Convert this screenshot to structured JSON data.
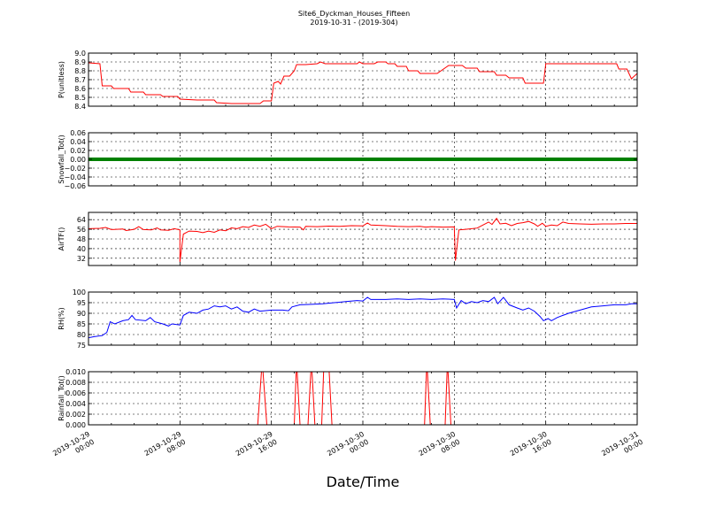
{
  "title_line1": "Site6_Dyckman_Houses_Fifteen",
  "title_line2": "2019-10-31 - (2019-304)",
  "xlabel": "Date/Time",
  "chart_data": {
    "type": "line",
    "x_range": [
      "2019-10-29 00:00",
      "2019-10-31 00:00"
    ],
    "x_ticks": [
      {
        "line1": "2019-10-29",
        "line2": "00:00",
        "hour": 0
      },
      {
        "line1": "2019-10-29",
        "line2": "08:00",
        "hour": 8
      },
      {
        "line1": "2019-10-29",
        "line2": "16:00",
        "hour": 16
      },
      {
        "line1": "2019-10-30",
        "line2": "00:00",
        "hour": 24
      },
      {
        "line1": "2019-10-30",
        "line2": "08:00",
        "hour": 32
      },
      {
        "line1": "2019-10-30",
        "line2": "16:00",
        "hour": 40
      },
      {
        "line1": "2019-10-31",
        "line2": "00:00",
        "hour": 48
      }
    ],
    "grid": true,
    "panels": [
      {
        "ylabel": "P(unitless)",
        "color": "#ff0000",
        "ylim": [
          8.4,
          9.0
        ],
        "yticks": [
          "8.4",
          "8.5",
          "8.6",
          "8.7",
          "8.8",
          "8.9",
          "9.0"
        ],
        "points": [
          [
            0,
            8.89
          ],
          [
            1,
            8.88
          ],
          [
            1.2,
            8.63
          ],
          [
            2,
            8.63
          ],
          [
            2.2,
            8.6
          ],
          [
            3.5,
            8.6
          ],
          [
            3.7,
            8.56
          ],
          [
            4.8,
            8.56
          ],
          [
            5,
            8.53
          ],
          [
            6.3,
            8.53
          ],
          [
            6.5,
            8.51
          ],
          [
            7.8,
            8.51
          ],
          [
            8,
            8.48
          ],
          [
            9.5,
            8.47
          ],
          [
            11,
            8.47
          ],
          [
            11.2,
            8.44
          ],
          [
            12.5,
            8.43
          ],
          [
            15,
            8.43
          ],
          [
            15.3,
            8.46
          ],
          [
            16,
            8.46
          ],
          [
            16.2,
            8.66
          ],
          [
            16.6,
            8.68
          ],
          [
            16.8,
            8.65
          ],
          [
            17.1,
            8.74
          ],
          [
            17.6,
            8.74
          ],
          [
            18,
            8.8
          ],
          [
            18.2,
            8.87
          ],
          [
            19,
            8.87
          ],
          [
            20,
            8.88
          ],
          [
            20.3,
            8.9
          ],
          [
            20.7,
            8.88
          ],
          [
            22,
            8.88
          ],
          [
            23.5,
            8.88
          ],
          [
            23.7,
            8.9
          ],
          [
            24,
            8.88
          ],
          [
            25,
            8.88
          ],
          [
            25.3,
            8.9
          ],
          [
            26,
            8.9
          ],
          [
            26.2,
            8.88
          ],
          [
            26.8,
            8.88
          ],
          [
            27,
            8.85
          ],
          [
            27.8,
            8.85
          ],
          [
            28,
            8.8
          ],
          [
            28.8,
            8.8
          ],
          [
            29,
            8.77
          ],
          [
            30.5,
            8.77
          ],
          [
            31.5,
            8.86
          ],
          [
            32.7,
            8.86
          ],
          [
            33,
            8.83
          ],
          [
            34,
            8.83
          ],
          [
            34.2,
            8.79
          ],
          [
            35.5,
            8.79
          ],
          [
            35.7,
            8.75
          ],
          [
            36.5,
            8.75
          ],
          [
            36.8,
            8.72
          ],
          [
            38,
            8.72
          ],
          [
            38.2,
            8.66
          ],
          [
            39.8,
            8.66
          ],
          [
            40,
            8.88
          ],
          [
            45,
            8.88
          ],
          [
            46.2,
            8.88
          ],
          [
            46.4,
            8.82
          ],
          [
            47.1,
            8.82
          ],
          [
            47.5,
            8.71
          ],
          [
            48,
            8.77
          ]
        ]
      },
      {
        "ylabel": "Snowfall_Tot()",
        "color": "#008000",
        "ylim": [
          -0.06,
          0.06
        ],
        "yticks": [
          "−0.06",
          "−0.04",
          "−0.02",
          "0.00",
          "0.02",
          "0.04",
          "0.06"
        ],
        "yvals": [
          -0.06,
          -0.04,
          -0.02,
          0.0,
          0.02,
          0.04,
          0.06
        ],
        "points": [
          [
            0,
            0
          ],
          [
            48,
            0
          ]
        ],
        "thick": true
      },
      {
        "ylabel": "AirTF()",
        "color": "#ff0000",
        "ylim": [
          26,
          70
        ],
        "yticks": [
          "32",
          "40",
          "48",
          "56",
          "64"
        ],
        "yvals": [
          32,
          40,
          48,
          56,
          64
        ],
        "points": [
          [
            0,
            56.5
          ],
          [
            1,
            56.8
          ],
          [
            1.5,
            57.5
          ],
          [
            2,
            55.8
          ],
          [
            3,
            56.2
          ],
          [
            3.3,
            55.0
          ],
          [
            4,
            56.0
          ],
          [
            4.4,
            58.2
          ],
          [
            4.8,
            55.8
          ],
          [
            5.5,
            55.5
          ],
          [
            6,
            57.2
          ],
          [
            6.3,
            55.5
          ],
          [
            7,
            55.2
          ],
          [
            7.5,
            56.5
          ],
          [
            8,
            55.5
          ],
          [
            8,
            29
          ],
          [
            8.3,
            52
          ],
          [
            8.8,
            54.5
          ],
          [
            9.5,
            54.2
          ],
          [
            10,
            53.2
          ],
          [
            10.5,
            54.5
          ],
          [
            11,
            53.5
          ],
          [
            11.5,
            55.5
          ],
          [
            12,
            54.8
          ],
          [
            12.5,
            57.2
          ],
          [
            13,
            56.5
          ],
          [
            13.5,
            58.2
          ],
          [
            14,
            57.5
          ],
          [
            14.5,
            59.5
          ],
          [
            15,
            58.5
          ],
          [
            15.5,
            60.2
          ],
          [
            16,
            56.5
          ],
          [
            16.5,
            58.5
          ],
          [
            17.5,
            58.0
          ],
          [
            18.5,
            57.8
          ],
          [
            18.8,
            55.5
          ],
          [
            19,
            58.5
          ],
          [
            20,
            58.2
          ],
          [
            21,
            58.6
          ],
          [
            22,
            58.4
          ],
          [
            23,
            59.0
          ],
          [
            24,
            58.8
          ],
          [
            24.4,
            61.2
          ],
          [
            24.7,
            59.5
          ],
          [
            26,
            59.0
          ],
          [
            27,
            58.5
          ],
          [
            28,
            58.2
          ],
          [
            29,
            58.5
          ],
          [
            29.5,
            57.8
          ],
          [
            30,
            58.2
          ],
          [
            31,
            57.8
          ],
          [
            32,
            58.0
          ],
          [
            32.1,
            30
          ],
          [
            32.4,
            55.5
          ],
          [
            33,
            56.0
          ],
          [
            34,
            57.0
          ],
          [
            34.5,
            59.5
          ],
          [
            35,
            62.0
          ],
          [
            35.3,
            60.0
          ],
          [
            35.7,
            65.0
          ],
          [
            36,
            60.5
          ],
          [
            36.5,
            61.0
          ],
          [
            37,
            59.0
          ],
          [
            37.5,
            60.8
          ],
          [
            38,
            61.5
          ],
          [
            38.5,
            62.5
          ],
          [
            39,
            60.5
          ],
          [
            39.3,
            58.5
          ],
          [
            39.7,
            61.0
          ],
          [
            40,
            58.5
          ],
          [
            40.5,
            59.5
          ],
          [
            41,
            59.0
          ],
          [
            41.5,
            62.0
          ],
          [
            42,
            60.8
          ],
          [
            43,
            60.5
          ],
          [
            44,
            60.2
          ],
          [
            45,
            60.5
          ],
          [
            46,
            60.5
          ],
          [
            47,
            60.8
          ],
          [
            48,
            60.8
          ]
        ]
      },
      {
        "ylabel": "RH(%)",
        "color": "#0000ff",
        "ylim": [
          75,
          100
        ],
        "yticks": [
          "75",
          "80",
          "85",
          "90",
          "95",
          "100"
        ],
        "yvals": [
          75,
          80,
          85,
          90,
          95,
          100
        ],
        "points": [
          [
            0,
            78.5
          ],
          [
            0.5,
            79.0
          ],
          [
            1.2,
            79.5
          ],
          [
            1.6,
            81.0
          ],
          [
            1.9,
            86.0
          ],
          [
            2.3,
            85.0
          ],
          [
            3,
            86.5
          ],
          [
            3.5,
            87.0
          ],
          [
            3.8,
            89.0
          ],
          [
            4.1,
            87.0
          ],
          [
            5,
            86.5
          ],
          [
            5.4,
            88.0
          ],
          [
            5.8,
            86.0
          ],
          [
            6.5,
            85.0
          ],
          [
            7,
            84.0
          ],
          [
            7.3,
            85.0
          ],
          [
            8,
            84.5
          ],
          [
            8.3,
            89.0
          ],
          [
            8.8,
            90.5
          ],
          [
            9.5,
            90.0
          ],
          [
            10,
            91.5
          ],
          [
            10.5,
            92.0
          ],
          [
            11,
            93.5
          ],
          [
            11.5,
            93.0
          ],
          [
            12,
            93.5
          ],
          [
            12.5,
            92.0
          ],
          [
            13,
            93.0
          ],
          [
            13.5,
            91.0
          ],
          [
            14,
            90.5
          ],
          [
            14.5,
            92.0
          ],
          [
            15,
            91.0
          ],
          [
            16,
            91.5
          ],
          [
            17,
            91.5
          ],
          [
            17.5,
            91.2
          ],
          [
            17.8,
            93.0
          ],
          [
            18.5,
            94.0
          ],
          [
            19.5,
            94.2
          ],
          [
            20.5,
            94.5
          ],
          [
            21.5,
            95.0
          ],
          [
            22.5,
            95.5
          ],
          [
            23.5,
            96.0
          ],
          [
            24,
            95.8
          ],
          [
            24.4,
            97.5
          ],
          [
            24.7,
            96.5
          ],
          [
            26,
            96.5
          ],
          [
            27,
            96.8
          ],
          [
            28,
            96.5
          ],
          [
            29,
            96.8
          ],
          [
            30,
            96.5
          ],
          [
            31,
            96.8
          ],
          [
            32,
            96.5
          ],
          [
            32.2,
            92.5
          ],
          [
            32.6,
            96.0
          ],
          [
            33,
            94.5
          ],
          [
            33.5,
            95.5
          ],
          [
            34,
            95.0
          ],
          [
            34.5,
            96.0
          ],
          [
            35,
            95.5
          ],
          [
            35.5,
            97.5
          ],
          [
            35.8,
            94.5
          ],
          [
            36.3,
            97.5
          ],
          [
            36.8,
            94.0
          ],
          [
            37.5,
            92.5
          ],
          [
            38,
            91.5
          ],
          [
            38.5,
            92.5
          ],
          [
            39,
            91.0
          ],
          [
            39.5,
            88.5
          ],
          [
            39.8,
            86.5
          ],
          [
            40.2,
            87.5
          ],
          [
            40.5,
            86.5
          ],
          [
            41,
            88.0
          ],
          [
            41.5,
            89.0
          ],
          [
            42,
            90.0
          ],
          [
            43,
            91.5
          ],
          [
            44,
            93.0
          ],
          [
            45,
            93.5
          ],
          [
            46,
            94.0
          ],
          [
            47,
            94.0
          ],
          [
            47.5,
            94.5
          ],
          [
            48,
            94.5
          ]
        ]
      },
      {
        "ylabel": "Rainfall_Tot()",
        "color": "#ff0000",
        "ylim": [
          0,
          0.01
        ],
        "yticks": [
          "0.000",
          "0.002",
          "0.004",
          "0.006",
          "0.008",
          "0.010"
        ],
        "yvals": [
          0,
          0.002,
          0.004,
          0.006,
          0.008,
          0.01
        ],
        "points": [
          [
            0,
            0
          ],
          [
            14.8,
            0
          ],
          [
            15.2,
            0.012
          ],
          [
            15.6,
            0
          ],
          [
            18.0,
            0
          ],
          [
            18.2,
            0.012
          ],
          [
            18.5,
            0
          ],
          [
            19.2,
            0
          ],
          [
            19.5,
            0.012
          ],
          [
            19.8,
            0
          ],
          [
            20.4,
            0
          ],
          [
            20.6,
            0.012
          ],
          [
            21,
            0.012
          ],
          [
            21.3,
            0
          ],
          [
            29.4,
            0
          ],
          [
            29.6,
            0.012
          ],
          [
            29.9,
            0
          ],
          [
            31.2,
            0
          ],
          [
            31.4,
            0.012
          ],
          [
            31.7,
            0
          ],
          [
            48,
            0
          ]
        ]
      }
    ]
  }
}
